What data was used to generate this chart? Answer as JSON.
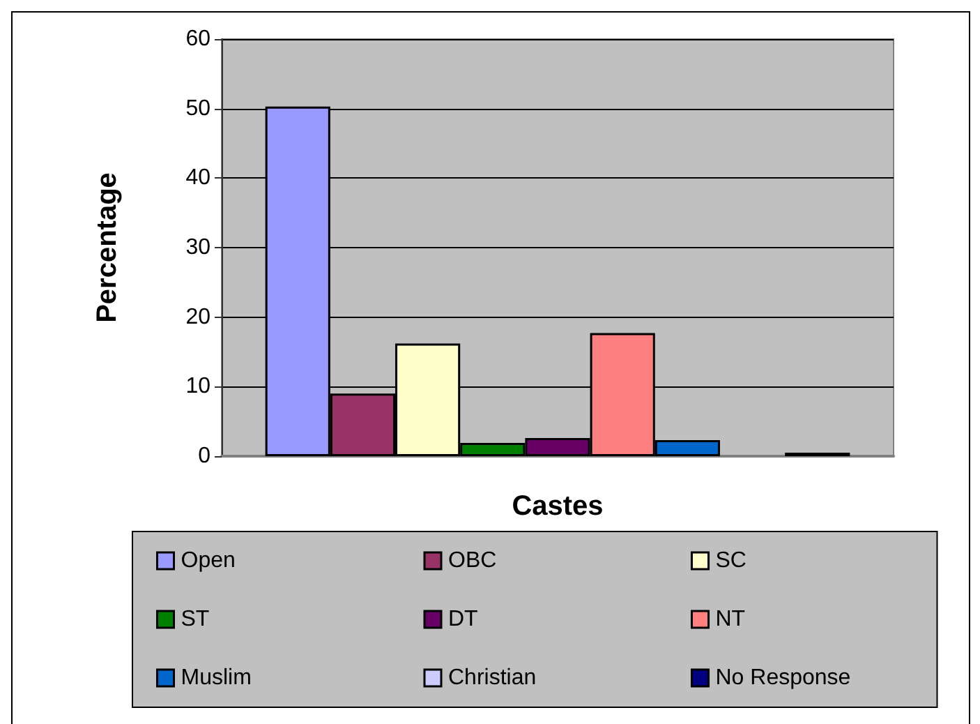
{
  "chart_data": {
    "type": "bar",
    "xlabel": "Castes",
    "ylabel": "Percentage",
    "categories": [
      null
    ],
    "series": [
      {
        "name": "Open",
        "color": "#9999ff",
        "values": [
          50.3
        ]
      },
      {
        "name": "OBC",
        "color": "#993366",
        "values": [
          9.0
        ]
      },
      {
        "name": "SC",
        "color": "#ffffcc",
        "values": [
          16.2
        ]
      },
      {
        "name": "ST",
        "color": "#008000",
        "values": [
          1.9
        ]
      },
      {
        "name": "DT",
        "color": "#660066",
        "values": [
          2.6
        ]
      },
      {
        "name": "NT",
        "color": "#ff8080",
        "values": [
          17.7
        ]
      },
      {
        "name": "Muslim",
        "color": "#0066cc",
        "values": [
          2.3
        ]
      },
      {
        "name": "Christian",
        "color": "#ccccff",
        "values": [
          0
        ]
      },
      {
        "name": "No Response",
        "color": "#000080",
        "values": [
          0.5
        ]
      }
    ],
    "ylim": [
      0,
      60
    ],
    "yticks": [
      0,
      10,
      20,
      30,
      40,
      50,
      60
    ],
    "grid": "y",
    "legend": "bottom"
  }
}
